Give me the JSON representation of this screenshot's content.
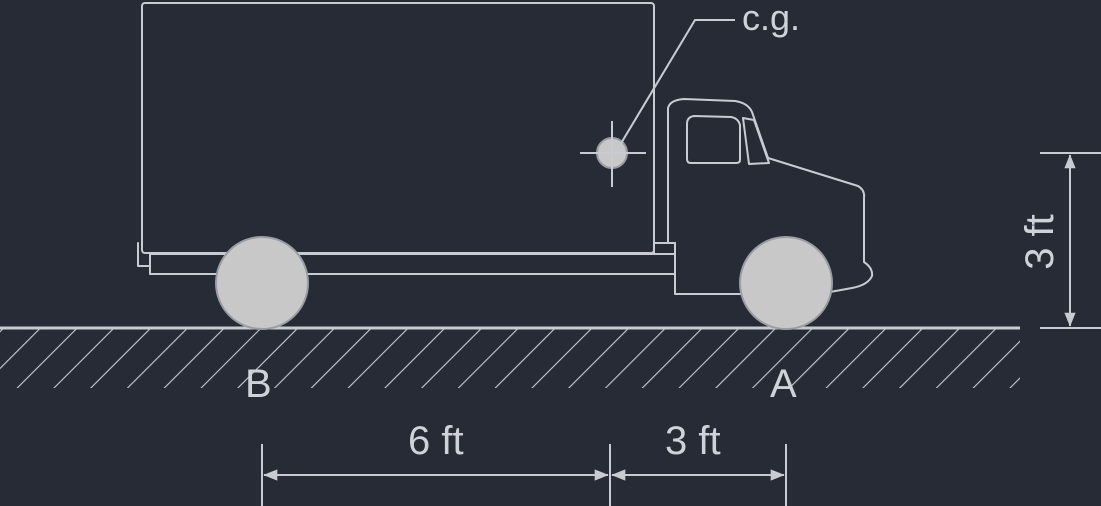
{
  "labels": {
    "cg": "c.g.",
    "point_a": "A",
    "point_b": "B",
    "dim_b_to_cg": "6 ft",
    "dim_cg_to_a": "3 ft",
    "dim_cg_height": "3 ft"
  },
  "colors": {
    "background": "#262b35",
    "line": "#c8ccd2",
    "wheel_fill": "#c8c8c8",
    "text": "#cfd3d9"
  }
}
